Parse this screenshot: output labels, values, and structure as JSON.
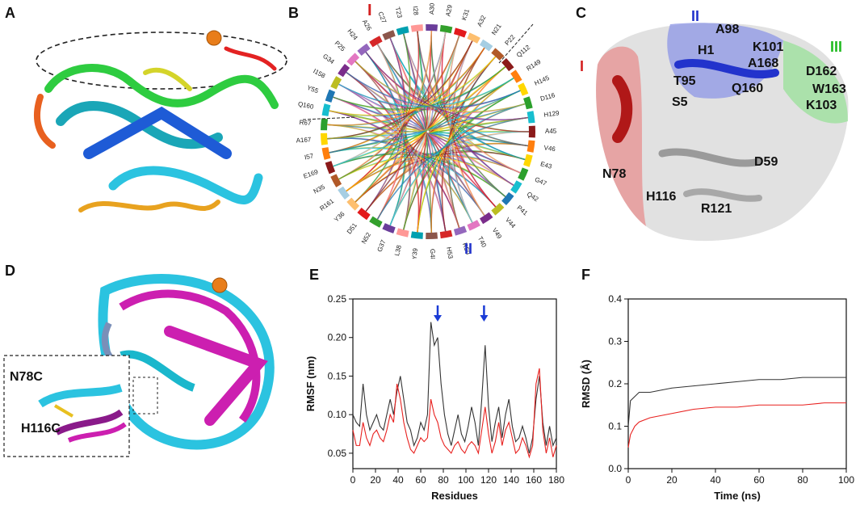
{
  "panels": {
    "a": "A",
    "b": "B",
    "c": "C",
    "d": "D",
    "e": "E",
    "f": "F"
  },
  "chord": {
    "region_top": "I",
    "region_bottom": "II",
    "labels": [
      "A45",
      "V46",
      "E43",
      "G47",
      "Q42",
      "P41",
      "V44",
      "V49",
      "T40",
      "R50",
      "H53",
      "G48",
      "Y39",
      "L38",
      "G37",
      "N52",
      "D51",
      "Y36",
      "R161",
      "N35",
      "E169",
      "I57",
      "A167",
      "R67",
      "Q160",
      "Y55",
      "I158",
      "G34",
      "P25",
      "H24",
      "A26",
      "C27",
      "T23",
      "I28",
      "A30",
      "A29",
      "K31",
      "A32",
      "N21",
      "P22",
      "Q112",
      "R149",
      "H145",
      "D116",
      "H129"
    ]
  },
  "structure_c": {
    "region_I": "I",
    "region_II": "II",
    "region_III": "III",
    "residues": [
      "A98",
      "H1",
      "K101",
      "A168",
      "D162",
      "T95",
      "Q160",
      "W163",
      "S5",
      "K103",
      "N78",
      "D59",
      "H116",
      "R121"
    ]
  },
  "structure_d": {
    "mut1": "N78C",
    "mut2": "H116C"
  },
  "colors": {
    "black_series": "#333333",
    "red_series": "#e8211f",
    "arrow": "#1a3bd6",
    "region_I": "#d42020",
    "region_II": "#2233cc",
    "region_III": "#22bb22"
  },
  "chart_data": [
    {
      "type": "line",
      "panel": "E",
      "xlabel": "Residues",
      "ylabel": "RMSF (nm)",
      "xlim": [
        0,
        180
      ],
      "ylim": [
        0.03,
        0.25
      ],
      "xticks": [
        0,
        20,
        40,
        60,
        80,
        100,
        120,
        140,
        160,
        180
      ],
      "yticks": [
        0.05,
        0.1,
        0.15,
        0.2,
        0.25
      ],
      "arrows_at": [
        75,
        116
      ],
      "series": [
        {
          "name": "black",
          "x": [
            0,
            3,
            6,
            9,
            12,
            15,
            18,
            21,
            24,
            27,
            30,
            33,
            36,
            39,
            42,
            45,
            48,
            51,
            54,
            57,
            60,
            63,
            66,
            69,
            72,
            75,
            78,
            81,
            84,
            87,
            90,
            93,
            96,
            99,
            102,
            105,
            108,
            111,
            114,
            117,
            120,
            123,
            126,
            129,
            132,
            135,
            138,
            141,
            144,
            147,
            150,
            153,
            156,
            159,
            162,
            165,
            168,
            171,
            174,
            177,
            180
          ],
          "y": [
            0.1,
            0.09,
            0.085,
            0.14,
            0.1,
            0.08,
            0.09,
            0.1,
            0.085,
            0.08,
            0.1,
            0.12,
            0.1,
            0.13,
            0.15,
            0.12,
            0.09,
            0.08,
            0.06,
            0.07,
            0.09,
            0.08,
            0.1,
            0.22,
            0.19,
            0.2,
            0.14,
            0.1,
            0.075,
            0.06,
            0.08,
            0.1,
            0.075,
            0.065,
            0.085,
            0.11,
            0.09,
            0.06,
            0.12,
            0.19,
            0.11,
            0.065,
            0.09,
            0.11,
            0.07,
            0.1,
            0.12,
            0.085,
            0.065,
            0.07,
            0.085,
            0.07,
            0.05,
            0.07,
            0.12,
            0.15,
            0.09,
            0.06,
            0.085,
            0.06,
            0.07
          ]
        },
        {
          "name": "red",
          "x": [
            0,
            3,
            6,
            9,
            12,
            15,
            18,
            21,
            24,
            27,
            30,
            33,
            36,
            39,
            42,
            45,
            48,
            51,
            54,
            57,
            60,
            63,
            66,
            69,
            72,
            75,
            78,
            81,
            84,
            87,
            90,
            93,
            96,
            99,
            102,
            105,
            108,
            111,
            114,
            117,
            120,
            123,
            126,
            129,
            132,
            135,
            138,
            141,
            144,
            147,
            150,
            153,
            156,
            159,
            162,
            165,
            168,
            171,
            174,
            177,
            180
          ],
          "y": [
            0.08,
            0.06,
            0.06,
            0.09,
            0.07,
            0.06,
            0.075,
            0.08,
            0.07,
            0.065,
            0.08,
            0.1,
            0.09,
            0.14,
            0.12,
            0.09,
            0.07,
            0.055,
            0.05,
            0.06,
            0.07,
            0.065,
            0.07,
            0.12,
            0.1,
            0.09,
            0.07,
            0.06,
            0.055,
            0.05,
            0.06,
            0.065,
            0.055,
            0.05,
            0.06,
            0.065,
            0.06,
            0.05,
            0.08,
            0.11,
            0.075,
            0.05,
            0.065,
            0.09,
            0.06,
            0.08,
            0.09,
            0.07,
            0.05,
            0.055,
            0.07,
            0.06,
            0.045,
            0.06,
            0.14,
            0.16,
            0.08,
            0.05,
            0.07,
            0.045,
            0.06
          ]
        }
      ]
    },
    {
      "type": "line",
      "panel": "F",
      "xlabel": "Time (ns)",
      "ylabel": "RMSD (Å)",
      "xlim": [
        0,
        100
      ],
      "ylim": [
        0.0,
        0.4
      ],
      "xticks": [
        0,
        20,
        40,
        60,
        80,
        100
      ],
      "yticks": [
        0.0,
        0.1,
        0.2,
        0.3,
        0.4
      ],
      "series": [
        {
          "name": "black",
          "x": [
            0,
            1,
            3,
            5,
            10,
            15,
            20,
            30,
            40,
            50,
            60,
            70,
            80,
            90,
            100
          ],
          "y": [
            0.1,
            0.16,
            0.17,
            0.18,
            0.18,
            0.185,
            0.19,
            0.195,
            0.2,
            0.205,
            0.21,
            0.21,
            0.215,
            0.215,
            0.215
          ]
        },
        {
          "name": "red",
          "x": [
            0,
            1,
            3,
            5,
            10,
            15,
            20,
            30,
            40,
            50,
            60,
            70,
            80,
            90,
            100
          ],
          "y": [
            0.05,
            0.08,
            0.1,
            0.11,
            0.12,
            0.125,
            0.13,
            0.14,
            0.145,
            0.145,
            0.15,
            0.15,
            0.15,
            0.155,
            0.155
          ]
        }
      ]
    }
  ]
}
